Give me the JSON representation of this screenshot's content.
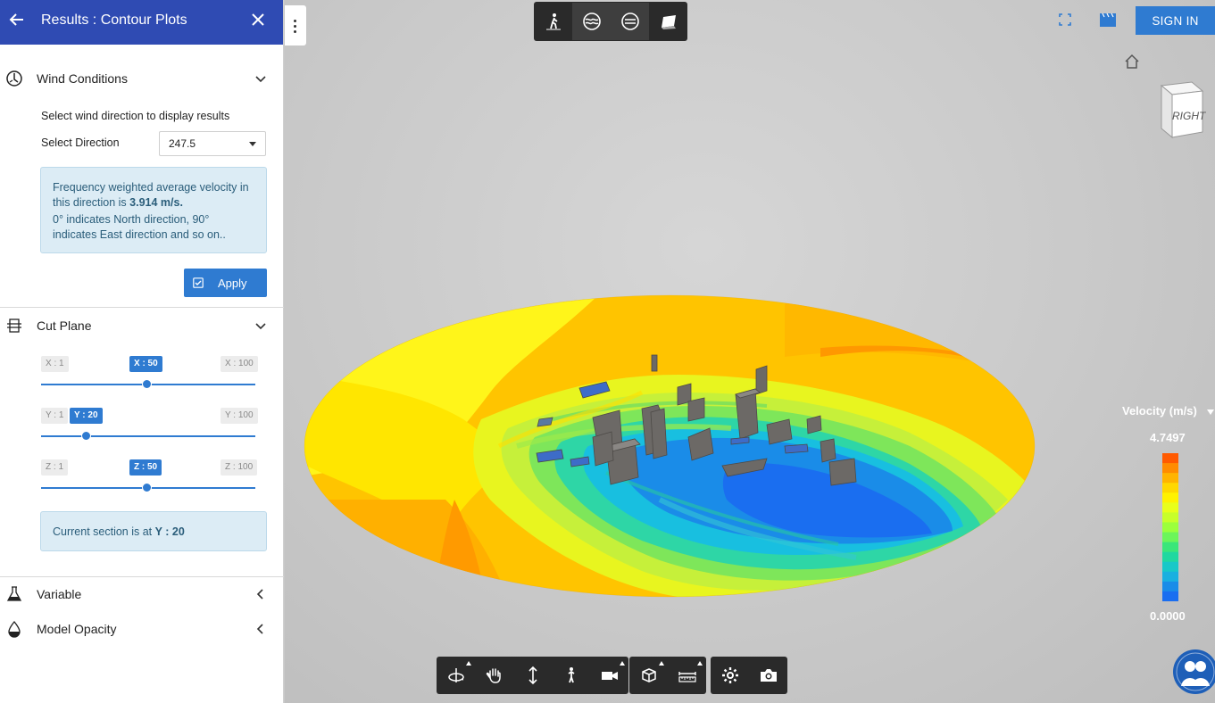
{
  "sidebar": {
    "header": {
      "title": "Results : Contour Plots"
    },
    "wind": {
      "title": "Wind Conditions",
      "prompt": "Select wind direction to display results",
      "select_label": "Select Direction",
      "selected_direction": "247.5",
      "info_line1": "Frequency weighted average velocity in this direction is ",
      "info_value": "3.914 m/s.",
      "info_line2": "0° indicates North direction, 90° indicates East direction and so on..",
      "apply_label": "Apply"
    },
    "cut_plane": {
      "title": "Cut Plane",
      "sliders": [
        {
          "min_label": "X : 1",
          "value_label": "X : 50",
          "max_label": "X : 100",
          "value": 50
        },
        {
          "min_label": "Y : 1",
          "value_label": "Y : 20",
          "max_label": "Y : 100",
          "value": 20
        },
        {
          "min_label": "Z : 1",
          "value_label": "Z : 50",
          "max_label": "Z : 100",
          "value": 50
        }
      ],
      "section_prefix": "Current section is at ",
      "section_value": "Y : 20"
    },
    "variable": {
      "title": "Variable"
    },
    "opacity": {
      "title": "Model Opacity"
    }
  },
  "top_toolbar": {
    "icons": [
      "pedestrian-icon",
      "slice-wave-icon",
      "slice-plane-icon",
      "surface-icon"
    ]
  },
  "header_right": {
    "signin_label": "SIGN IN"
  },
  "viewcube": {
    "face_label": "RIGHT"
  },
  "legend": {
    "title": "Velocity (m/s)",
    "max": "4.7497",
    "min": "0.0000"
  },
  "bottom_toolbar": {
    "icons": [
      "orbit-icon",
      "pan-icon",
      "vertical-move-icon",
      "walk-icon",
      "camera-icon",
      "section-box-icon",
      "measure-icon",
      "settings-icon",
      "screenshot-icon"
    ]
  },
  "colors": {
    "accent": "#2f7bd1",
    "header": "#2f4bb3",
    "legend": [
      "#ff5a00",
      "#ff8c00",
      "#ffb400",
      "#ffd800",
      "#fff200",
      "#e9ff1a",
      "#c8ff2a",
      "#9cff3c",
      "#6cf55a",
      "#3be67a",
      "#20d8a0",
      "#18c8c8",
      "#1ab0e0",
      "#1a8ce8",
      "#1a6ef0"
    ]
  }
}
